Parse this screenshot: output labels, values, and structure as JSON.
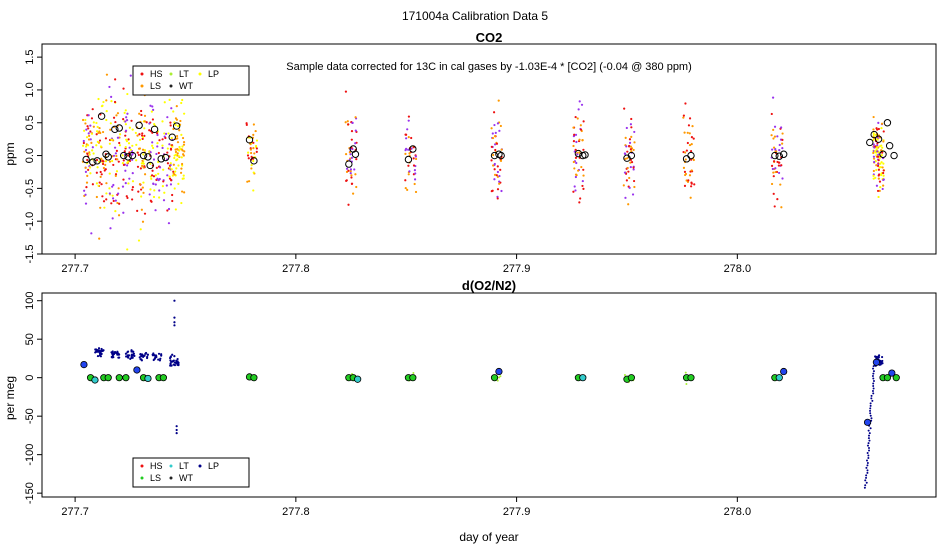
{
  "figure": {
    "suptitle": "171004a   Calibration Data 5",
    "xlabel": "day of year"
  },
  "colors": {
    "HS": "#ee1111",
    "LS": "#ff9900",
    "LT": "#aaee33",
    "WT": "#222222",
    "LP": "#ffff00",
    "purple": "#9933ee",
    "navy": "#000088",
    "circle_green": "#22cc22",
    "circle_cyan": "#33cccc",
    "circle_blue": "#2244ee"
  },
  "chart_data": [
    {
      "type": "scatter",
      "title": "CO2",
      "annotation": "Sample data corrected for 13C in cal gases by -1.03E-4 * [CO2] (-0.04 @ 380 ppm)",
      "xlabel": "",
      "ylabel": "ppm",
      "xlim": [
        277.685,
        278.09
      ],
      "ylim": [
        -1.5,
        1.7
      ],
      "xticks": [
        277.7,
        277.8,
        277.9,
        278.0
      ],
      "xtick_labels": [
        "277.7",
        "277.8",
        "277.9",
        "278.0"
      ],
      "yticks": [
        -1.5,
        -1.0,
        -0.5,
        0.0,
        0.5,
        1.0,
        1.5
      ],
      "ytick_labels": [
        "-1.5",
        "-1.0",
        "-0.5",
        "0.0",
        "0.5",
        "1.0",
        "1.5"
      ],
      "legend": {
        "placement": "top-left",
        "entries": [
          "HS",
          "LS",
          "LT",
          "WT",
          "LP"
        ]
      },
      "clusters": [
        {
          "x": 277.706,
          "spread": 1.0,
          "n": 60,
          "colors": [
            "purple",
            "HS",
            "LS",
            "LP"
          ]
        },
        {
          "x": 277.712,
          "spread": 1.2,
          "n": 60,
          "colors": [
            "LP",
            "LS",
            "HS"
          ]
        },
        {
          "x": 277.718,
          "spread": 1.1,
          "n": 60,
          "colors": [
            "LP",
            "LS",
            "HS",
            "purple"
          ]
        },
        {
          "x": 277.724,
          "spread": 1.1,
          "n": 60,
          "colors": [
            "purple",
            "HS",
            "LP"
          ]
        },
        {
          "x": 277.73,
          "spread": 1.1,
          "n": 60,
          "colors": [
            "LP",
            "LS",
            "HS"
          ]
        },
        {
          "x": 277.736,
          "spread": 1.0,
          "n": 60,
          "colors": [
            "HS",
            "purple",
            "LP"
          ]
        },
        {
          "x": 277.742,
          "spread": 1.0,
          "n": 60,
          "colors": [
            "LP",
            "HS",
            "purple"
          ]
        },
        {
          "x": 277.747,
          "spread": 1.0,
          "n": 70,
          "colors": [
            "LP",
            "LS"
          ]
        },
        {
          "x": 277.78,
          "spread": 0.6,
          "n": 40,
          "colors": [
            "LS",
            "HS",
            "LP"
          ]
        },
        {
          "x": 277.825,
          "spread": 0.8,
          "n": 50,
          "colors": [
            "HS",
            "LS",
            "purple"
          ]
        },
        {
          "x": 277.852,
          "spread": 0.7,
          "n": 40,
          "colors": [
            "HS",
            "LS",
            "purple"
          ]
        },
        {
          "x": 277.891,
          "spread": 0.8,
          "n": 50,
          "colors": [
            "purple",
            "HS",
            "LS"
          ]
        },
        {
          "x": 277.928,
          "spread": 0.8,
          "n": 50,
          "colors": [
            "HS",
            "LS",
            "purple"
          ]
        },
        {
          "x": 277.951,
          "spread": 0.8,
          "n": 50,
          "colors": [
            "LS",
            "HS",
            "purple"
          ]
        },
        {
          "x": 277.978,
          "spread": 0.6,
          "n": 40,
          "colors": [
            "LS",
            "HS"
          ]
        },
        {
          "x": 278.018,
          "spread": 0.7,
          "n": 50,
          "colors": [
            "HS",
            "purple",
            "LS"
          ]
        },
        {
          "x": 278.064,
          "spread": 0.6,
          "n": 110,
          "colors": [
            "LP",
            "LP",
            "HS",
            "purple",
            "LS"
          ]
        }
      ],
      "circles": [
        {
          "x": 277.705,
          "y": -0.06
        },
        {
          "x": 277.708,
          "y": -0.1
        },
        {
          "x": 277.71,
          "y": -0.08
        },
        {
          "x": 277.712,
          "y": 0.6
        },
        {
          "x": 277.714,
          "y": 0.02
        },
        {
          "x": 277.715,
          "y": -0.02
        },
        {
          "x": 277.718,
          "y": 0.4
        },
        {
          "x": 277.72,
          "y": 0.42
        },
        {
          "x": 277.722,
          "y": 0.0
        },
        {
          "x": 277.724,
          "y": -0.02
        },
        {
          "x": 277.726,
          "y": 0.0
        },
        {
          "x": 277.729,
          "y": 0.46
        },
        {
          "x": 277.731,
          "y": 0.0
        },
        {
          "x": 277.733,
          "y": -0.02
        },
        {
          "x": 277.734,
          "y": -0.15
        },
        {
          "x": 277.736,
          "y": 0.4
        },
        {
          "x": 277.739,
          "y": -0.05
        },
        {
          "x": 277.741,
          "y": -0.03
        },
        {
          "x": 277.744,
          "y": 0.28
        },
        {
          "x": 277.746,
          "y": 0.45
        },
        {
          "x": 277.779,
          "y": 0.24
        },
        {
          "x": 277.781,
          "y": -0.08
        },
        {
          "x": 277.824,
          "y": -0.13
        },
        {
          "x": 277.826,
          "y": 0.1
        },
        {
          "x": 277.827,
          "y": 0.02
        },
        {
          "x": 277.851,
          "y": -0.06
        },
        {
          "x": 277.853,
          "y": 0.1
        },
        {
          "x": 277.89,
          "y": 0.0
        },
        {
          "x": 277.892,
          "y": 0.02
        },
        {
          "x": 277.893,
          "y": 0.0
        },
        {
          "x": 277.928,
          "y": 0.03
        },
        {
          "x": 277.93,
          "y": 0.0
        },
        {
          "x": 277.931,
          "y": 0.01
        },
        {
          "x": 277.95,
          "y": -0.04
        },
        {
          "x": 277.952,
          "y": 0.0
        },
        {
          "x": 277.977,
          "y": -0.05
        },
        {
          "x": 277.979,
          "y": 0.0
        },
        {
          "x": 278.017,
          "y": 0.0
        },
        {
          "x": 278.019,
          "y": -0.01
        },
        {
          "x": 278.021,
          "y": 0.02
        },
        {
          "x": 278.06,
          "y": 0.2
        },
        {
          "x": 278.062,
          "y": 0.32
        },
        {
          "x": 278.064,
          "y": 0.25
        },
        {
          "x": 278.066,
          "y": 0.02
        },
        {
          "x": 278.068,
          "y": 0.5
        },
        {
          "x": 278.069,
          "y": 0.15
        },
        {
          "x": 278.071,
          "y": 0.0
        }
      ]
    },
    {
      "type": "scatter",
      "title": "d(O2/N2)",
      "xlabel": "day of year",
      "ylabel": "per meg",
      "xlim": [
        277.685,
        278.09
      ],
      "ylim": [
        -155,
        110
      ],
      "xticks": [
        277.7,
        277.8,
        277.9,
        278.0
      ],
      "xtick_labels": [
        "277.7",
        "277.8",
        "277.9",
        "278.0"
      ],
      "yticks": [
        -150,
        -100,
        -50,
        0,
        50,
        100
      ],
      "ytick_labels": [
        "-150",
        "-100",
        "-50",
        "0",
        "50",
        "100"
      ],
      "legend": {
        "placement": "bottom-left",
        "entries": [
          "HS",
          "LS",
          "LT",
          "WT",
          "LP"
        ]
      },
      "navy_clusters": [
        {
          "x": 277.711,
          "center": 33,
          "spread": 5,
          "n": 25
        },
        {
          "x": 277.718,
          "center": 31,
          "spread": 5,
          "n": 25
        },
        {
          "x": 277.725,
          "center": 30,
          "spread": 5,
          "n": 25
        },
        {
          "x": 277.731,
          "center": 28,
          "spread": 5,
          "n": 20
        },
        {
          "x": 277.737,
          "center": 27,
          "spread": 5,
          "n": 20
        },
        {
          "x": 277.745,
          "center": 22,
          "spread": 6,
          "n": 30
        },
        {
          "x": 278.064,
          "center": 22,
          "spread": 6,
          "n": 30
        }
      ],
      "navy_outliers": [
        {
          "x": 277.745,
          "y": 100
        },
        {
          "x": 277.745,
          "y": 78
        },
        {
          "x": 277.745,
          "y": 72
        },
        {
          "x": 277.745,
          "y": 68
        },
        {
          "x": 277.746,
          "y": -63
        },
        {
          "x": 277.746,
          "y": -68
        },
        {
          "x": 277.746,
          "y": -72
        }
      ],
      "navy_drop": {
        "x_start": 278.058,
        "x_end": 278.062,
        "y_start": -143,
        "y_end": 15,
        "n": 50
      },
      "small_greens": [
        {
          "x": 277.825,
          "n": 12
        },
        {
          "x": 277.852,
          "n": 8
        },
        {
          "x": 277.951,
          "n": 12
        },
        {
          "x": 277.891,
          "n": 6
        },
        {
          "x": 277.978,
          "n": 6
        }
      ],
      "circles": [
        {
          "x": 277.704,
          "y": 17,
          "c": "circle_blue"
        },
        {
          "x": 277.707,
          "y": 0,
          "c": "circle_green"
        },
        {
          "x": 277.709,
          "y": -3,
          "c": "circle_cyan"
        },
        {
          "x": 277.713,
          "y": 0,
          "c": "circle_green"
        },
        {
          "x": 277.715,
          "y": 0,
          "c": "circle_green"
        },
        {
          "x": 277.72,
          "y": 0,
          "c": "circle_green"
        },
        {
          "x": 277.723,
          "y": 0,
          "c": "circle_green"
        },
        {
          "x": 277.728,
          "y": 10,
          "c": "circle_blue"
        },
        {
          "x": 277.731,
          "y": 0,
          "c": "circle_green"
        },
        {
          "x": 277.733,
          "y": -1,
          "c": "circle_cyan"
        },
        {
          "x": 277.738,
          "y": 0,
          "c": "circle_green"
        },
        {
          "x": 277.74,
          "y": 0,
          "c": "circle_green"
        },
        {
          "x": 277.779,
          "y": 1,
          "c": "circle_green"
        },
        {
          "x": 277.781,
          "y": 0,
          "c": "circle_green"
        },
        {
          "x": 277.824,
          "y": 0,
          "c": "circle_green"
        },
        {
          "x": 277.826,
          "y": 0,
          "c": "circle_green"
        },
        {
          "x": 277.828,
          "y": -2,
          "c": "circle_cyan"
        },
        {
          "x": 277.851,
          "y": 0,
          "c": "circle_green"
        },
        {
          "x": 277.853,
          "y": 0,
          "c": "circle_green"
        },
        {
          "x": 277.89,
          "y": 0,
          "c": "circle_green"
        },
        {
          "x": 277.892,
          "y": 8,
          "c": "circle_blue"
        },
        {
          "x": 277.928,
          "y": 0,
          "c": "circle_green"
        },
        {
          "x": 277.93,
          "y": 0,
          "c": "circle_cyan"
        },
        {
          "x": 277.95,
          "y": -2,
          "c": "circle_green"
        },
        {
          "x": 277.952,
          "y": 0,
          "c": "circle_green"
        },
        {
          "x": 277.977,
          "y": 0,
          "c": "circle_green"
        },
        {
          "x": 277.979,
          "y": 0,
          "c": "circle_green"
        },
        {
          "x": 278.017,
          "y": 0,
          "c": "circle_green"
        },
        {
          "x": 278.019,
          "y": 0,
          "c": "circle_cyan"
        },
        {
          "x": 278.021,
          "y": 8,
          "c": "circle_blue"
        },
        {
          "x": 278.059,
          "y": -58,
          "c": "circle_blue"
        },
        {
          "x": 278.063,
          "y": 20,
          "c": "circle_blue"
        },
        {
          "x": 278.066,
          "y": 0,
          "c": "circle_green"
        },
        {
          "x": 278.068,
          "y": 0,
          "c": "circle_green"
        },
        {
          "x": 278.07,
          "y": 6,
          "c": "circle_blue"
        },
        {
          "x": 278.072,
          "y": 0,
          "c": "circle_green"
        }
      ]
    }
  ]
}
